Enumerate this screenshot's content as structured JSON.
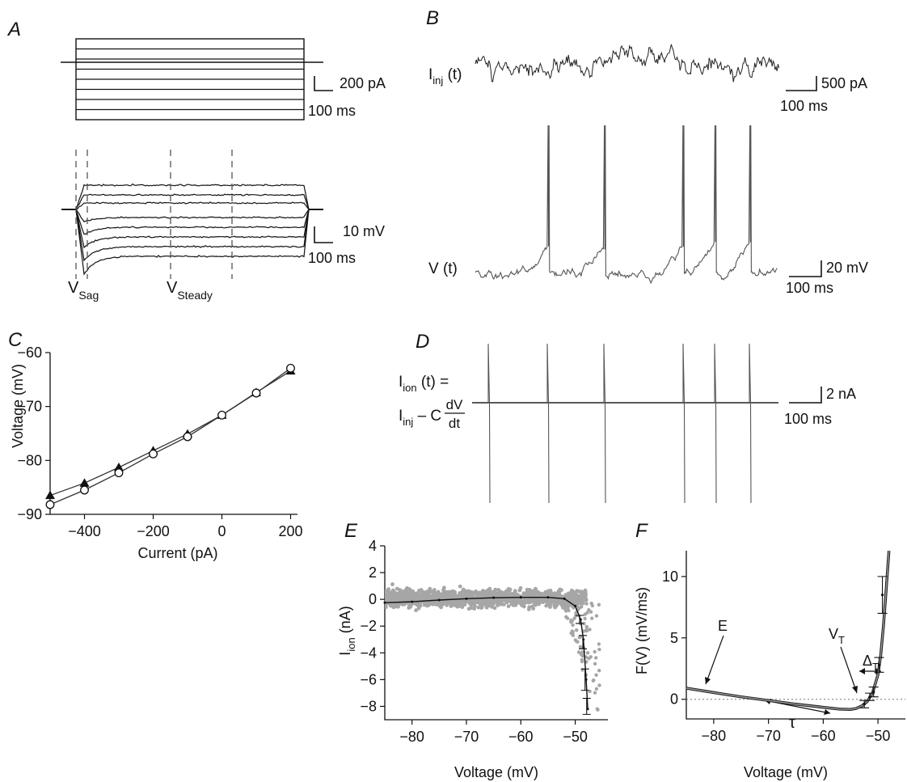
{
  "panels": {
    "A": {
      "label": "A",
      "scale_current": {
        "value": "200 pA",
        "time": "100 ms"
      },
      "scale_voltage": {
        "value": "10 mV",
        "time": "100 ms"
      },
      "v_sag": {
        "main": "V",
        "sub": "Sag"
      },
      "v_steady": {
        "main": "V",
        "sub": "Steady"
      }
    },
    "B": {
      "label": "B",
      "trace_current": {
        "main": "I",
        "sub": "inj",
        "suffix": " (t)"
      },
      "trace_voltage": "V (t)",
      "scale_current": {
        "value": "500 pA",
        "time": "100 ms"
      },
      "scale_voltage": {
        "value": "20 mV",
        "time": "100 ms"
      }
    },
    "C": {
      "label": "C"
    },
    "D": {
      "label": "D",
      "eq_line1": {
        "main": "I",
        "sub": "ion",
        "suffix": " (t) ="
      },
      "eq_line2": {
        "main": "I",
        "sub": "inj",
        "suffix": " – C"
      },
      "eq_frac": {
        "num": "dV",
        "den": "dt"
      },
      "scale": {
        "value": "2 nA",
        "time": "100 ms"
      }
    },
    "E": {
      "label": "E"
    },
    "F": {
      "label": "F",
      "ann_E": "E",
      "ann_VT": {
        "main": "V",
        "sub": "T"
      },
      "ann_DT": {
        "main": "Δ",
        "sub": "T"
      },
      "ann_tau": "τ"
    }
  },
  "chart_data": [
    {
      "panel": "C",
      "type": "line",
      "xlabel": "Current (pA)",
      "ylabel": "Voltage (mV)",
      "xlim": [
        -500,
        220
      ],
      "ylim": [
        -90,
        -60
      ],
      "xticks": [
        -400,
        -200,
        0,
        200
      ],
      "yticks": [
        -90,
        -80,
        -70,
        -60
      ],
      "series": [
        {
          "marker": "filled-triangle",
          "x": [
            -500,
            -400,
            -300,
            -200,
            -100,
            0,
            100,
            200
          ],
          "y": [
            -86.5,
            -84.2,
            -81.3,
            -78.2,
            -75.1,
            -71.6,
            -67.4,
            -63.4
          ]
        },
        {
          "marker": "open-circle",
          "x": [
            -500,
            -400,
            -300,
            -200,
            -100,
            0,
            100,
            200
          ],
          "y": [
            -88.2,
            -85.5,
            -82.3,
            -78.8,
            -75.6,
            -71.6,
            -67.5,
            -62.9
          ]
        }
      ]
    },
    {
      "panel": "E",
      "type": "scatter",
      "xlabel": "Voltage (mV)",
      "ylabel": {
        "main": "I",
        "sub": "ion",
        "suffix": " (nA)"
      },
      "xlim": [
        -85,
        -44
      ],
      "ylim": [
        -9,
        4
      ],
      "xticks": [
        -80,
        -70,
        -60,
        -50
      ],
      "yticks": [
        -8,
        -6,
        -4,
        -2,
        0,
        2,
        4
      ],
      "mean_curve": {
        "x": [
          -85,
          -80,
          -75,
          -70,
          -65,
          -60,
          -55,
          -52,
          -50,
          -49,
          -48.5,
          -48,
          -47.7
        ],
        "y": [
          -0.25,
          -0.18,
          -0.05,
          0.05,
          0.12,
          0.15,
          0.15,
          0.05,
          -0.5,
          -1.5,
          -3,
          -6,
          -8.2
        ]
      },
      "error_bars": {
        "x": [
          -49.2,
          -48.6,
          -48.2,
          -47.9
        ],
        "y": [
          -1.5,
          -3.2,
          -6.0,
          -8.0
        ],
        "err": [
          0.3,
          0.5,
          0.8,
          0.6
        ]
      }
    },
    {
      "panel": "F",
      "type": "line",
      "xlabel": "Voltage (mV)",
      "ylabel": "F(V) (mV/ms)",
      "xlim": [
        -85,
        -45
      ],
      "ylim": [
        -1.6,
        12.1
      ],
      "xticks": [
        -80,
        -70,
        -60,
        -50
      ],
      "yticks": [
        0,
        5,
        10
      ],
      "reference_line": {
        "y": 0,
        "style": "dotted"
      },
      "fit_curve": {
        "x": [
          -85,
          -80,
          -75,
          -70,
          -65,
          -60,
          -57,
          -55,
          -54,
          -53,
          -52,
          -51,
          -50,
          -49.5,
          -49,
          -48.5,
          -48
        ],
        "y": [
          0.9,
          0.55,
          0.2,
          -0.1,
          -0.4,
          -0.65,
          -0.8,
          -0.82,
          -0.75,
          -0.55,
          -0.2,
          0.5,
          2.0,
          3.6,
          6.0,
          9.0,
          12.1
        ]
      },
      "error_bars": {
        "x": [
          -52.5,
          -51.5,
          -50.8,
          -49.8,
          -49.2
        ],
        "y": [
          -0.4,
          0.2,
          0.6,
          2.8,
          8.5
        ],
        "err": [
          0.3,
          0.3,
          0.4,
          0.6,
          1.5
        ]
      }
    }
  ]
}
